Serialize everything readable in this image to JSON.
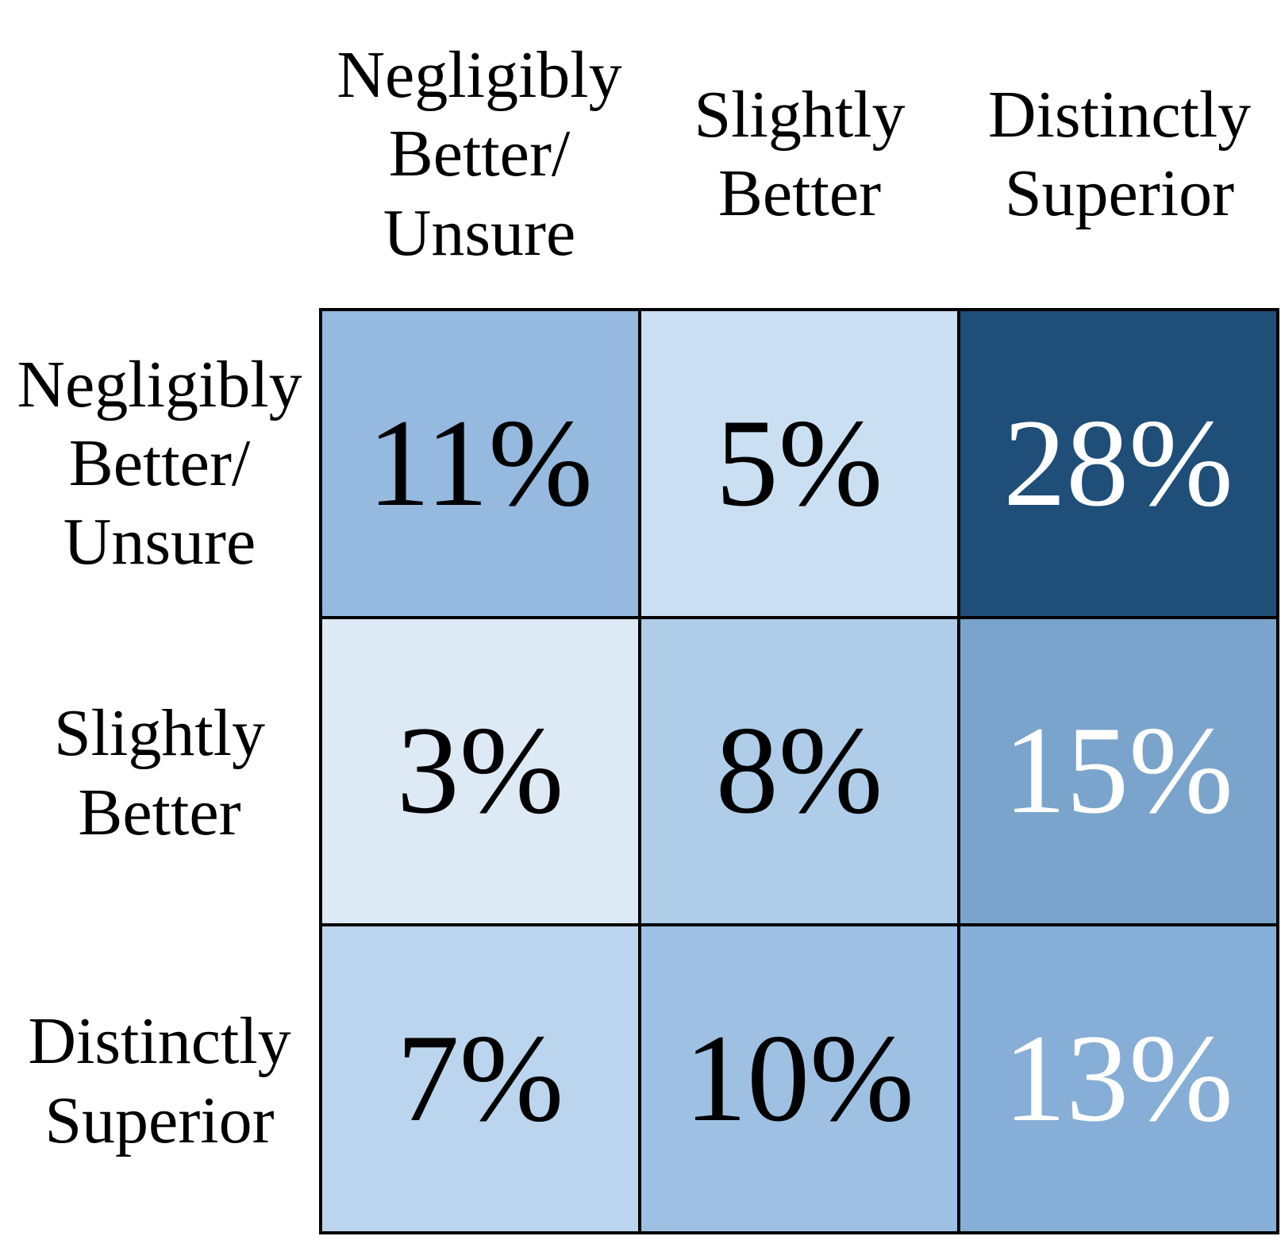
{
  "figure": {
    "background": "#FFFFFF"
  },
  "chart_data": {
    "type": "heatmap",
    "title": "",
    "unit": "%",
    "x_categories": [
      "Negligibly Better/Unsure",
      "Slightly Better",
      "Distinctly Superior"
    ],
    "y_categories": [
      "Negligibly Better/Unsure",
      "Slightly Better",
      "Distinctly Superior"
    ],
    "values": [
      [
        11,
        5,
        28
      ],
      [
        3,
        8,
        15
      ],
      [
        7,
        10,
        13
      ]
    ],
    "color_scale": {
      "low_value_color": "#DDE9F5",
      "high_value_color": "#1F4E79"
    },
    "grid_line_color": "#000000",
    "label_text_color": "#000000",
    "col_headers": [
      "Negligibly\nBetter/\nUnsure",
      "Slightly\nBetter",
      "Distinctly\nSuperior"
    ],
    "row_headers": [
      "Negligibly\nBetter/\nUnsure",
      "Slightly\nBetter",
      "Distinctly\nSuperior"
    ],
    "cells": [
      [
        {
          "label": "11%",
          "bg": "#95B9DF",
          "fg": "#000000"
        },
        {
          "label": "5%",
          "bg": "#CBDFF2",
          "fg": "#000000"
        },
        {
          "label": "28%",
          "bg": "#1F4E79",
          "fg": "#FFFFFF"
        }
      ],
      [
        {
          "label": "3%",
          "bg": "#DDE9F5",
          "fg": "#000000"
        },
        {
          "label": "8%",
          "bg": "#AFCDE9",
          "fg": "#000000"
        },
        {
          "label": "15%",
          "bg": "#7AA4CC",
          "fg": "#FFFFFF"
        }
      ],
      [
        {
          "label": "7%",
          "bg": "#BCD5EE",
          "fg": "#000000"
        },
        {
          "label": "10%",
          "bg": "#9EC1E3",
          "fg": "#000000"
        },
        {
          "label": "13%",
          "bg": "#87AED6",
          "fg": "#FFFFFF"
        }
      ]
    ]
  }
}
